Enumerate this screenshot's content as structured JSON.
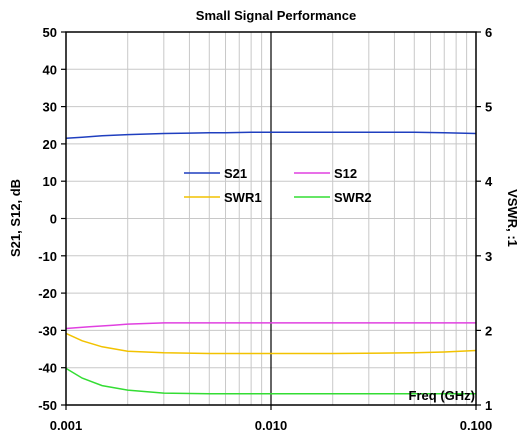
{
  "chart_data": {
    "type": "line",
    "title": "Small Signal Performance",
    "xlabel": "Freq (GHz)",
    "ylabel_left": "S21, S12, dB",
    "ylabel_right": "VSWR, :1",
    "x_scale": "log",
    "xlim": [
      0.001,
      0.1
    ],
    "ylim_left": [
      -50,
      50
    ],
    "ylim_right": [
      1,
      6
    ],
    "x_tick_labels": [
      "0.001",
      "0.010",
      "0.100"
    ],
    "y_left_ticks": [
      "50",
      "40",
      "30",
      "20",
      "10",
      "0",
      "-10",
      "-20",
      "-30",
      "-40",
      "-50"
    ],
    "y_right_ticks": [
      "6",
      "5",
      "4",
      "3",
      "2",
      "1"
    ],
    "grid": true,
    "legend_position": "center",
    "series": [
      {
        "name": "S21",
        "axis": "left",
        "color": "#1f3fbf",
        "x": [
          0.001,
          0.0012,
          0.0015,
          0.002,
          0.003,
          0.004,
          0.005,
          0.006,
          0.008,
          0.01,
          0.02,
          0.03,
          0.05,
          0.07,
          0.1
        ],
        "y": [
          21.5,
          21.8,
          22.2,
          22.5,
          22.8,
          22.9,
          23.0,
          23.0,
          23.1,
          23.1,
          23.1,
          23.1,
          23.1,
          23.0,
          22.8
        ]
      },
      {
        "name": "S12",
        "axis": "left",
        "color": "#e040e0",
        "x": [
          0.001,
          0.0013,
          0.0017,
          0.002,
          0.003,
          0.005,
          0.01,
          0.02,
          0.05,
          0.1
        ],
        "y": [
          -29.5,
          -29.0,
          -28.6,
          -28.3,
          -28.0,
          -28.0,
          -28.0,
          -28.0,
          -28.0,
          -28.0
        ]
      },
      {
        "name": "SWR1",
        "axis": "right",
        "color": "#f2c200",
        "x": [
          0.001,
          0.0012,
          0.0015,
          0.002,
          0.003,
          0.005,
          0.01,
          0.02,
          0.05,
          0.07,
          0.1
        ],
        "y": [
          1.96,
          1.86,
          1.78,
          1.72,
          1.7,
          1.69,
          1.69,
          1.69,
          1.7,
          1.71,
          1.73
        ]
      },
      {
        "name": "SWR2",
        "axis": "right",
        "color": "#33dd33",
        "x": [
          0.001,
          0.0012,
          0.0015,
          0.002,
          0.003,
          0.005,
          0.01,
          0.02,
          0.05,
          0.1
        ],
        "y": [
          1.49,
          1.36,
          1.26,
          1.2,
          1.16,
          1.15,
          1.15,
          1.15,
          1.15,
          1.15
        ]
      }
    ]
  }
}
